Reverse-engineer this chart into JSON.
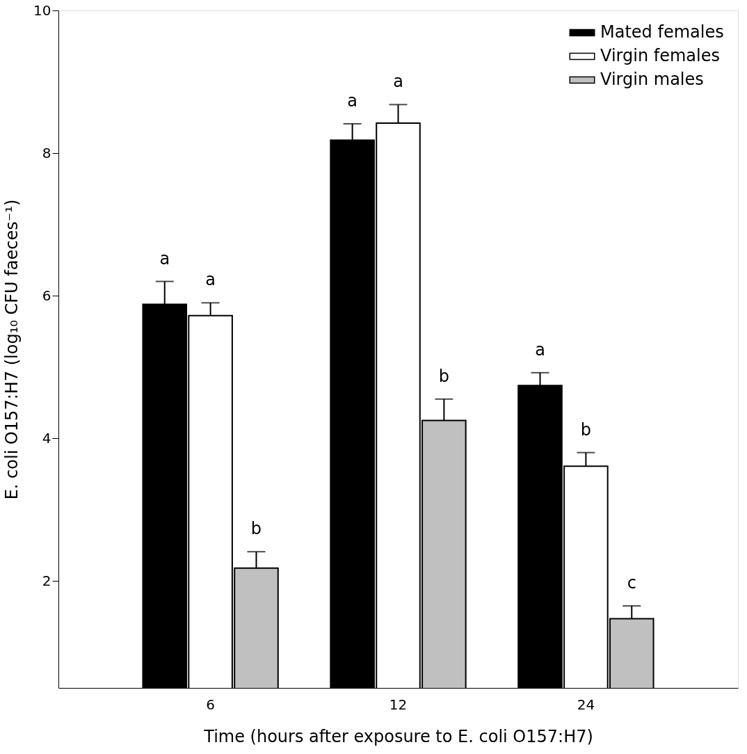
{
  "chart_data": {
    "type": "bar",
    "xlabel": "Time (hours after exposure to E. coli O157:H7)",
    "ylabel": "E. coli O157:H7 (log₁₀ CFU faeces⁻¹)",
    "categories": [
      "6",
      "12",
      "24"
    ],
    "series": [
      {
        "name": "Mated females",
        "color": "#000000",
        "values": [
          5.88,
          8.18,
          4.74
        ],
        "errors": [
          [
            5.88,
            6.2
          ],
          [
            8.18,
            8.41
          ],
          [
            4.74,
            4.92
          ]
        ]
      },
      {
        "name": "Virgin females",
        "color": "#ffffff",
        "values": [
          5.72,
          8.42,
          3.61
        ],
        "errors": [
          [
            5.72,
            5.9
          ],
          [
            8.42,
            8.68
          ],
          [
            3.61,
            3.8
          ]
        ]
      },
      {
        "name": "Virgin males",
        "color": "#c0c0c0",
        "values": [
          2.18,
          4.25,
          1.47
        ],
        "errors": [
          [
            2.18,
            2.41
          ],
          [
            4.25,
            4.55
          ],
          [
            1.47,
            1.65
          ]
        ]
      }
    ],
    "ylim": [
      0.5,
      10
    ],
    "yticks": [
      2,
      4,
      6,
      8,
      10
    ],
    "grid": false,
    "legend": "top right",
    "annotations": [
      "a",
      "a",
      "b",
      "a",
      "a",
      "b",
      "a",
      "b",
      "c"
    ]
  }
}
